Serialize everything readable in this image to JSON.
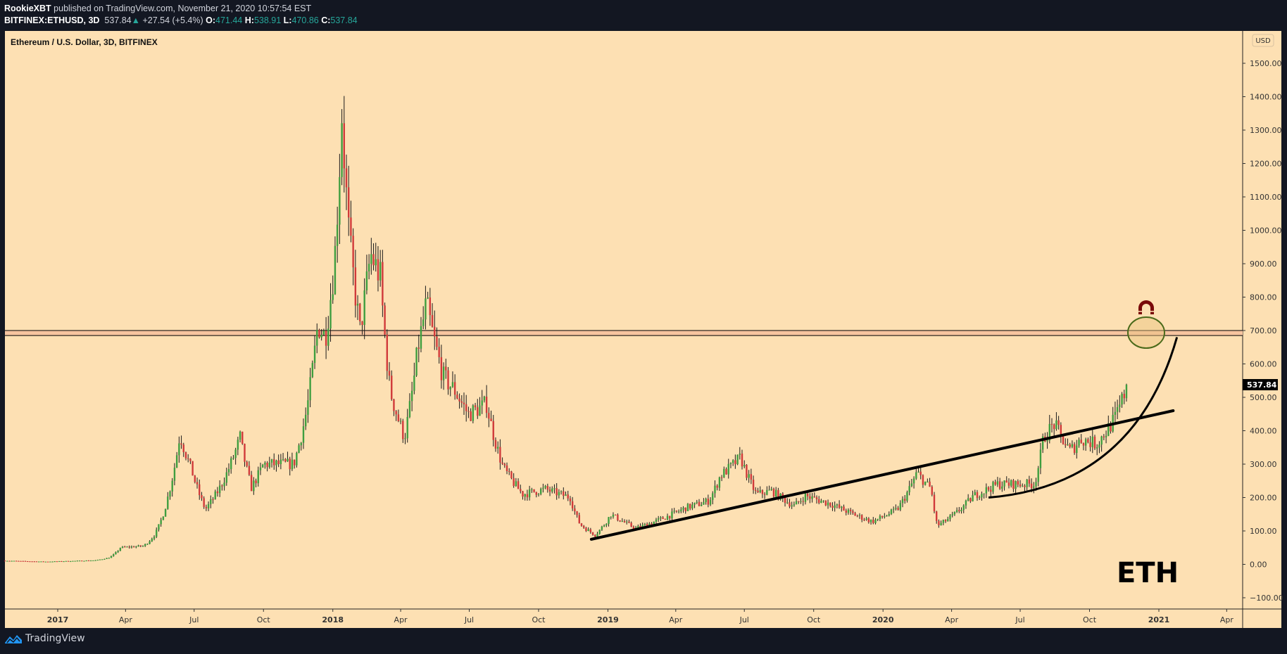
{
  "header": {
    "author": "RookieXBT",
    "published_text": "published on TradingView.com, November 21, 2020 10:57:54 EST",
    "symbol": "BITFINEX:ETHUSD, 3D",
    "last": "537.84",
    "change": "+27.54 (+5.4%)",
    "o_label": "O:",
    "o": "471.44",
    "h_label": "H:",
    "h": "538.91",
    "l_label": "L:",
    "l": "470.86",
    "c_label": "C:",
    "c": "537.84"
  },
  "footer": {
    "brand": "TradingView"
  },
  "colors": {
    "background": "#fde0b3",
    "up": "#3f9e3f",
    "down": "#d03a3a",
    "frame": "#131722",
    "band": "#f6c4a0",
    "target_circle": "#4a6a1a",
    "magnet": "#7a0a0a",
    "logo": "#2196f3"
  },
  "chart_data": {
    "type": "candlestick",
    "title": "Ethereum / U.S. Dollar, 3D, BITFINEX",
    "interval": "3D",
    "currency_label": "USD",
    "ylim": [
      -120,
      1560
    ],
    "y_ticks": [
      "1500.00",
      "1400.00",
      "1300.00",
      "1200.00",
      "1100.00",
      "1000.00",
      "900.00",
      "800.00",
      "700.00",
      "600.00",
      "500.00",
      "400.00",
      "300.00",
      "200.00",
      "100.00",
      "0.00",
      "−100.00"
    ],
    "y_tick_values": [
      1500,
      1400,
      1300,
      1200,
      1100,
      1000,
      900,
      800,
      700,
      600,
      500,
      400,
      300,
      200,
      100,
      0,
      -100
    ],
    "x_ticks": [
      {
        "date": "2017-01-01",
        "label": "2017",
        "major": true
      },
      {
        "date": "2017-04-01",
        "label": "Apr"
      },
      {
        "date": "2017-07-01",
        "label": "Jul"
      },
      {
        "date": "2017-10-01",
        "label": "Oct"
      },
      {
        "date": "2018-01-01",
        "label": "2018",
        "major": true
      },
      {
        "date": "2018-04-01",
        "label": "Apr"
      },
      {
        "date": "2018-07-01",
        "label": "Jul"
      },
      {
        "date": "2018-10-01",
        "label": "Oct"
      },
      {
        "date": "2019-01-01",
        "label": "2019",
        "major": true
      },
      {
        "date": "2019-04-01",
        "label": "Apr"
      },
      {
        "date": "2019-07-01",
        "label": "Jul"
      },
      {
        "date": "2019-10-01",
        "label": "Oct"
      },
      {
        "date": "2020-01-01",
        "label": "2020",
        "major": true
      },
      {
        "date": "2020-04-01",
        "label": "Apr"
      },
      {
        "date": "2020-07-01",
        "label": "Jul"
      },
      {
        "date": "2020-10-01",
        "label": "Oct"
      },
      {
        "date": "2021-01-01",
        "label": "2021",
        "major": true
      },
      {
        "date": "2021-04-01",
        "label": "Apr"
      }
    ],
    "price_path": [
      [
        "2016-10-20",
        11
      ],
      [
        "2016-12-15",
        8
      ],
      [
        "2017-02-20",
        12
      ],
      [
        "2017-03-10",
        20
      ],
      [
        "2017-03-25",
        50
      ],
      [
        "2017-04-25",
        55
      ],
      [
        "2017-05-10",
        90
      ],
      [
        "2017-05-28",
        210
      ],
      [
        "2017-06-12",
        390
      ],
      [
        "2017-06-28",
        280
      ],
      [
        "2017-07-16",
        165
      ],
      [
        "2017-08-03",
        225
      ],
      [
        "2017-08-31",
        380
      ],
      [
        "2017-09-15",
        230
      ],
      [
        "2017-10-01",
        300
      ],
      [
        "2017-10-25",
        300
      ],
      [
        "2017-11-10",
        300
      ],
      [
        "2017-11-28",
        470
      ],
      [
        "2017-12-12",
        720
      ],
      [
        "2017-12-22",
        680
      ],
      [
        "2018-01-03",
        900
      ],
      [
        "2018-01-13",
        1350
      ],
      [
        "2018-01-22",
        1000
      ],
      [
        "2018-02-06",
        700
      ],
      [
        "2018-02-20",
        930
      ],
      [
        "2018-03-05",
        860
      ],
      [
        "2018-03-18",
        520
      ],
      [
        "2018-04-06",
        380
      ],
      [
        "2018-04-24",
        650
      ],
      [
        "2018-05-05",
        780
      ],
      [
        "2018-05-28",
        560
      ],
      [
        "2018-06-12",
        520
      ],
      [
        "2018-06-30",
        450
      ],
      [
        "2018-07-24",
        480
      ],
      [
        "2018-08-15",
        290
      ],
      [
        "2018-09-10",
        210
      ],
      [
        "2018-10-10",
        225
      ],
      [
        "2018-11-12",
        200
      ],
      [
        "2018-11-25",
        120
      ],
      [
        "2018-12-15",
        88
      ],
      [
        "2019-01-05",
        150
      ],
      [
        "2019-02-07",
        108
      ],
      [
        "2019-03-15",
        138
      ],
      [
        "2019-04-15",
        170
      ],
      [
        "2019-05-15",
        190
      ],
      [
        "2019-05-30",
        265
      ],
      [
        "2019-06-26",
        320
      ],
      [
        "2019-07-17",
        210
      ],
      [
        "2019-08-06",
        220
      ],
      [
        "2019-09-05",
        175
      ],
      [
        "2019-09-20",
        205
      ],
      [
        "2019-10-25",
        180
      ],
      [
        "2019-12-18",
        128
      ],
      [
        "2020-01-20",
        165
      ],
      [
        "2020-02-15",
        275
      ],
      [
        "2020-03-05",
        225
      ],
      [
        "2020-03-13",
        115
      ],
      [
        "2020-04-05",
        150
      ],
      [
        "2020-04-30",
        205
      ],
      [
        "2020-06-01",
        240
      ],
      [
        "2020-07-20",
        240
      ],
      [
        "2020-08-01",
        380
      ],
      [
        "2020-08-15",
        420
      ],
      [
        "2020-09-05",
        340
      ],
      [
        "2020-09-20",
        375
      ],
      [
        "2020-10-10",
        360
      ],
      [
        "2020-10-25",
        405
      ],
      [
        "2020-11-05",
        440
      ],
      [
        "2020-11-20",
        537.84
      ]
    ],
    "last_price": 537.84,
    "resistance_zone": [
      685,
      700
    ],
    "trendline": [
      [
        "2018-12-10",
        75
      ],
      [
        "2021-01-20",
        460
      ]
    ],
    "parabolic_curve": {
      "from": [
        "2020-05-20",
        200
      ],
      "to": [
        "2021-01-25",
        680
      ]
    },
    "annotation_text": "ETH"
  }
}
